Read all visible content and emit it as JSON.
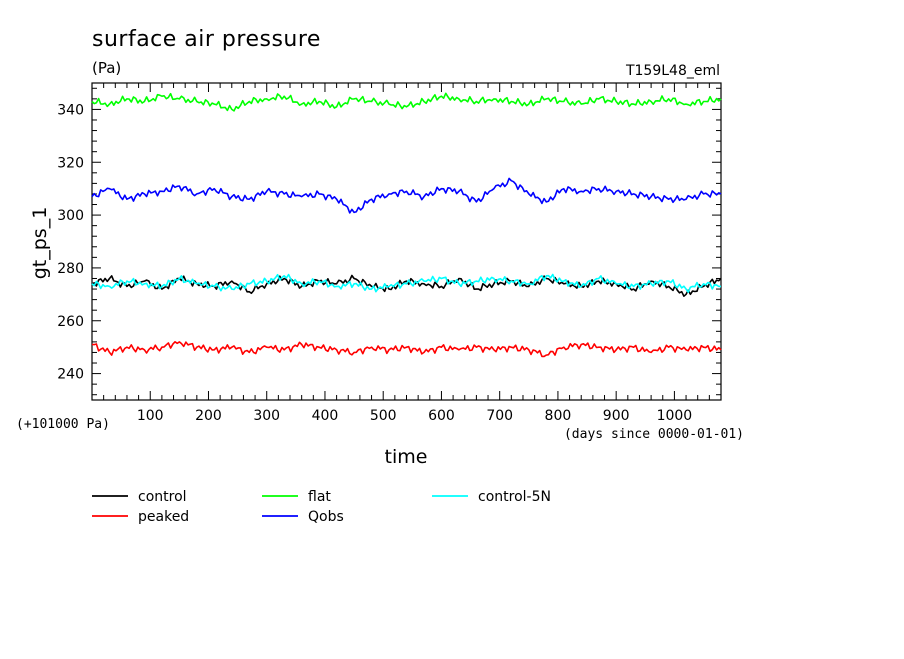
{
  "chart_data": {
    "type": "line",
    "title": "surface air pressure",
    "units": "(Pa)",
    "run_tag": "T159L48_eml",
    "ylabel": "gt_ps_1",
    "xlabel": "time",
    "y_offset_note": "(+101000 Pa)",
    "x_origin_note": "(days since 0000-01-01)",
    "xlim": [
      0,
      1080
    ],
    "ylim": [
      230,
      350
    ],
    "x_ticks": [
      100,
      200,
      300,
      400,
      500,
      600,
      700,
      800,
      900,
      1000
    ],
    "y_ticks": [
      240,
      260,
      280,
      300,
      320,
      340
    ],
    "legend_position": "bottom",
    "series": [
      {
        "name": "control",
        "color": "#000000",
        "x": [
          0,
          30,
          60,
          90,
          120,
          150,
          180,
          210,
          240,
          270,
          300,
          330,
          360,
          390,
          420,
          450,
          480,
          510,
          540,
          570,
          600,
          630,
          660,
          690,
          720,
          750,
          780,
          810,
          840,
          870,
          900,
          930,
          960,
          990,
          1020,
          1050,
          1080
        ],
        "values": [
          274,
          276,
          273,
          275,
          272,
          276,
          274,
          273,
          275,
          271,
          274,
          276,
          273,
          275,
          274,
          276,
          273,
          272,
          275,
          274,
          273,
          276,
          272,
          274,
          275,
          273,
          276,
          274,
          273,
          275,
          274,
          272,
          275,
          273,
          270,
          273,
          276
        ]
      },
      {
        "name": "peaked",
        "color": "#ff0000",
        "x": [
          0,
          30,
          60,
          90,
          120,
          150,
          180,
          210,
          240,
          270,
          300,
          330,
          360,
          390,
          420,
          450,
          480,
          510,
          540,
          570,
          600,
          630,
          660,
          690,
          720,
          750,
          780,
          810,
          840,
          870,
          900,
          930,
          960,
          990,
          1020,
          1050,
          1080
        ],
        "values": [
          251,
          248,
          250,
          249,
          250,
          252,
          250,
          249,
          250,
          248,
          250,
          249,
          251,
          250,
          249,
          248,
          250,
          249,
          250,
          248,
          250,
          249,
          250,
          249,
          250,
          249,
          247,
          250,
          251,
          250,
          249,
          250,
          248,
          250,
          249,
          250,
          249
        ]
      },
      {
        "name": "flat",
        "color": "#00ff00",
        "x": [
          0,
          30,
          60,
          90,
          120,
          150,
          180,
          210,
          240,
          270,
          300,
          330,
          360,
          390,
          420,
          450,
          480,
          510,
          540,
          570,
          600,
          630,
          660,
          690,
          720,
          750,
          780,
          810,
          840,
          870,
          900,
          930,
          960,
          990,
          1020,
          1050,
          1080
        ],
        "values": [
          343,
          342,
          344,
          343,
          345,
          344,
          343,
          342,
          340,
          343,
          344,
          345,
          342,
          343,
          341,
          344,
          343,
          342,
          341,
          343,
          345,
          344,
          343,
          344,
          343,
          342,
          344,
          343,
          342,
          344,
          343,
          342,
          343,
          344,
          342,
          343,
          344
        ]
      },
      {
        "name": "Qobs",
        "color": "#0000ff",
        "x": [
          0,
          30,
          60,
          90,
          120,
          150,
          180,
          210,
          240,
          270,
          300,
          330,
          360,
          390,
          420,
          450,
          480,
          510,
          540,
          570,
          600,
          630,
          660,
          690,
          720,
          750,
          780,
          810,
          840,
          870,
          900,
          930,
          960,
          990,
          1020,
          1050,
          1080
        ],
        "values": [
          307,
          310,
          306,
          308,
          309,
          311,
          308,
          310,
          307,
          306,
          309,
          308,
          307,
          308,
          306,
          301,
          306,
          308,
          309,
          307,
          310,
          309,
          305,
          310,
          313,
          308,
          305,
          310,
          309,
          310,
          309,
          308,
          307,
          306,
          306,
          308,
          308
        ]
      },
      {
        "name": "control-5N",
        "color": "#00ffff",
        "x": [
          0,
          30,
          60,
          90,
          120,
          150,
          180,
          210,
          240,
          270,
          300,
          330,
          360,
          390,
          420,
          450,
          480,
          510,
          540,
          570,
          600,
          630,
          660,
          690,
          720,
          750,
          780,
          810,
          840,
          870,
          900,
          930,
          960,
          990,
          1020,
          1050,
          1080
        ],
        "values": [
          274,
          273,
          275,
          274,
          273,
          276,
          274,
          273,
          272,
          274,
          275,
          277,
          274,
          275,
          273,
          274,
          272,
          273,
          274,
          275,
          276,
          274,
          275,
          276,
          275,
          274,
          277,
          275,
          273,
          276,
          274,
          273,
          274,
          275,
          272,
          274,
          273
        ]
      }
    ]
  }
}
